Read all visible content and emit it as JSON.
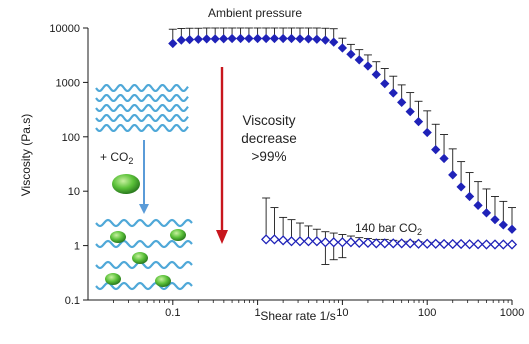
{
  "chart_data": {
    "type": "scatter",
    "title": "",
    "xlabel": "Shear rate 1/s",
    "ylabel": "Viscosity (Pa.s)",
    "x_scale": "log",
    "y_scale": "log",
    "xlim": [
      0.01,
      1000
    ],
    "ylim": [
      0.1,
      10000
    ],
    "grid": false,
    "x_ticks": [
      {
        "value": 0.1,
        "label": "0.1"
      },
      {
        "value": 1,
        "label": "1"
      },
      {
        "value": 10,
        "label": "10"
      },
      {
        "value": 100,
        "label": "100"
      },
      {
        "value": 1000,
        "label": "1000"
      }
    ],
    "y_ticks": [
      {
        "value": 0.1,
        "label": "0.1"
      },
      {
        "value": 1,
        "label": "1"
      },
      {
        "value": 10,
        "label": "10"
      },
      {
        "value": 100,
        "label": "100"
      },
      {
        "value": 1000,
        "label": "1000"
      },
      {
        "value": 10000,
        "label": "10000"
      }
    ],
    "series": [
      {
        "color": "#1f22b8",
        "marker": "filled-diamond",
        "x": [
          0.1,
          0.126,
          0.158,
          0.2,
          0.251,
          0.316,
          0.398,
          0.5,
          0.63,
          0.79,
          1.0,
          1.26,
          1.58,
          2.0,
          2.51,
          3.16,
          3.98,
          5.0,
          6.3,
          7.9,
          10,
          12.6,
          15.8,
          20,
          25.1,
          31.6,
          39.8,
          50,
          63,
          79,
          100,
          126,
          158,
          200,
          251,
          316,
          398,
          500,
          630,
          790,
          1000
        ],
        "y": [
          5200,
          6000,
          6100,
          6200,
          6300,
          6300,
          6350,
          6400,
          6400,
          6400,
          6400,
          6400,
          6400,
          6400,
          6400,
          6350,
          6300,
          6200,
          6000,
          5500,
          4300,
          3300,
          2600,
          2000,
          1400,
          950,
          640,
          430,
          290,
          190,
          120,
          58,
          40,
          20,
          12,
          8,
          5.5,
          4,
          3,
          2.4,
          2
        ],
        "err_up": [
          9500,
          9800,
          9900,
          9900,
          10000,
          10000,
          10000,
          10000,
          10000,
          10000,
          10000,
          10000,
          10000,
          10000,
          10000,
          10000,
          10000,
          10000,
          9900,
          9700,
          6500,
          5000,
          4000,
          3200,
          2400,
          1800,
          1300,
          900,
          650,
          450,
          300,
          170,
          110,
          60,
          35,
          22,
          15,
          11,
          8,
          6.5,
          5
        ]
      },
      {
        "name": "140 bar CO2",
        "color": "#1f22b8",
        "marker": "open-diamond",
        "x": [
          1.26,
          1.58,
          2.0,
          2.51,
          3.16,
          3.98,
          5.0,
          6.3,
          7.9,
          10,
          12.6,
          15.8,
          20,
          25.1,
          31.6,
          39.8,
          50,
          63,
          79,
          100,
          126,
          158,
          200,
          251,
          316,
          398,
          500,
          630,
          790,
          1000
        ],
        "y": [
          1.3,
          1.3,
          1.25,
          1.2,
          1.2,
          1.2,
          1.2,
          1.15,
          1.15,
          1.15,
          1.15,
          1.12,
          1.12,
          1.1,
          1.1,
          1.1,
          1.1,
          1.1,
          1.08,
          1.08,
          1.08,
          1.07,
          1.07,
          1.07,
          1.06,
          1.06,
          1.05,
          1.05,
          1.05,
          1.05
        ],
        "err_up": [
          7.5,
          5,
          3.3,
          3,
          2.6,
          2.3,
          2.0,
          1.8,
          1.7,
          1.6,
          1.5,
          1.4,
          1.35,
          1.3,
          1.3,
          1.25,
          1.2,
          1.2,
          1.18,
          1.15,
          1.15,
          1.13,
          1.12,
          1.12,
          1.1,
          1.1,
          1.1,
          1.08,
          1.08,
          1.07
        ],
        "err_down": [
          1.3,
          1.3,
          1.25,
          1.2,
          1.2,
          1.2,
          1.2,
          0.45,
          0.55,
          0.6,
          1.15,
          1.12,
          1.12,
          1.1,
          1.1,
          1.1,
          1.1,
          1.1,
          1.08,
          1.08,
          1.08,
          1.07,
          1.07,
          1.07,
          1.06,
          1.06,
          1.05,
          1.05,
          1.05,
          1.05
        ]
      }
    ],
    "annotations": {
      "ambient": "Ambient pressure",
      "decrease_line1": "Viscosity",
      "decrease_line2": "decrease",
      "decrease_line3": ">99%",
      "co2_label_prefix": "140 bar CO",
      "co2_label_sub": "2",
      "add_co2_prefix": "+ CO",
      "add_co2_sub": "2"
    },
    "colors": {
      "data": "#1f22b8",
      "arrow_red": "#c8161d",
      "arrow_blue": "#5a9bd8",
      "wave": "#4fa8d8",
      "molecule": "#3a9b2a"
    }
  }
}
